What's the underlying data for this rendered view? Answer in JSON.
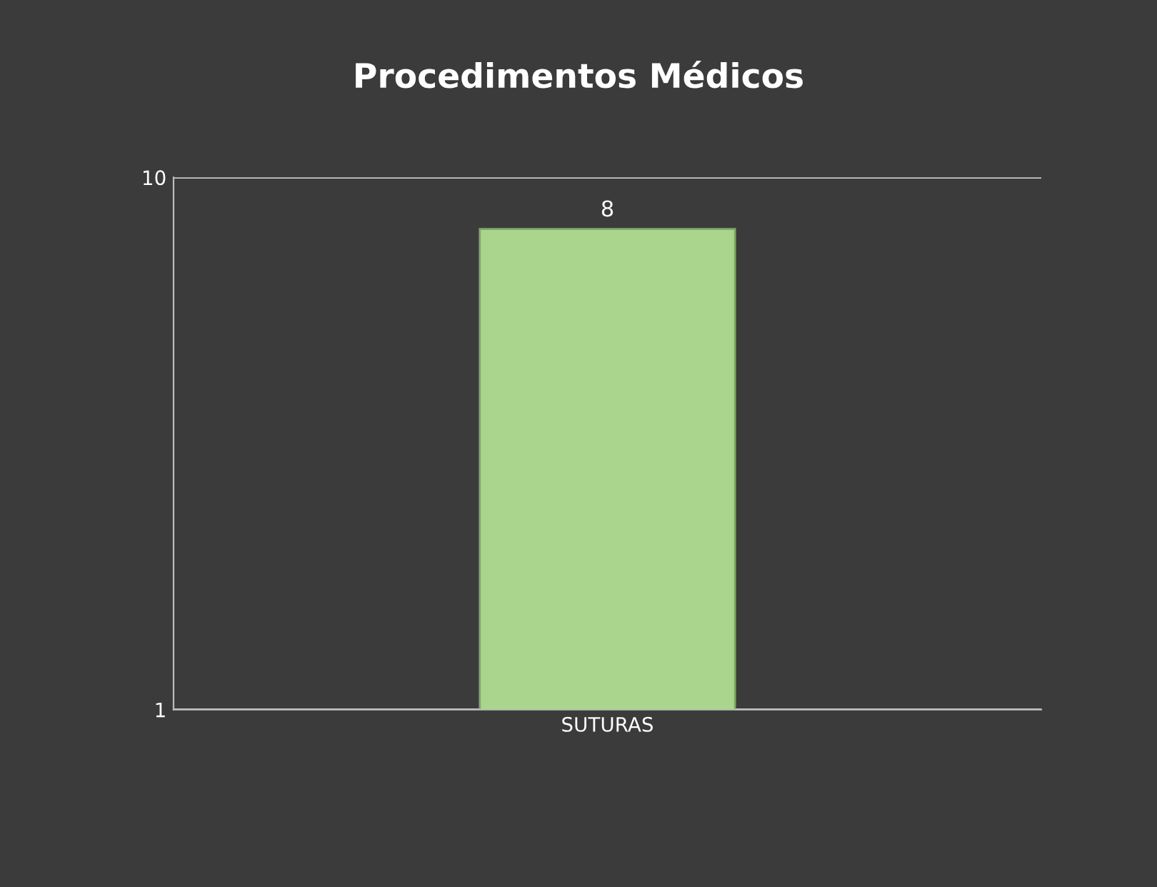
{
  "chart_data": {
    "type": "bar",
    "title": "Procedimentos Médicos",
    "categories": [
      "SUTURAS"
    ],
    "values": [
      8
    ],
    "color": "#a9d68c",
    "log": "y",
    "ylim": [
      1,
      10
    ],
    "yticks": [
      1,
      10
    ],
    "grid": "y",
    "data_labels": true
  }
}
